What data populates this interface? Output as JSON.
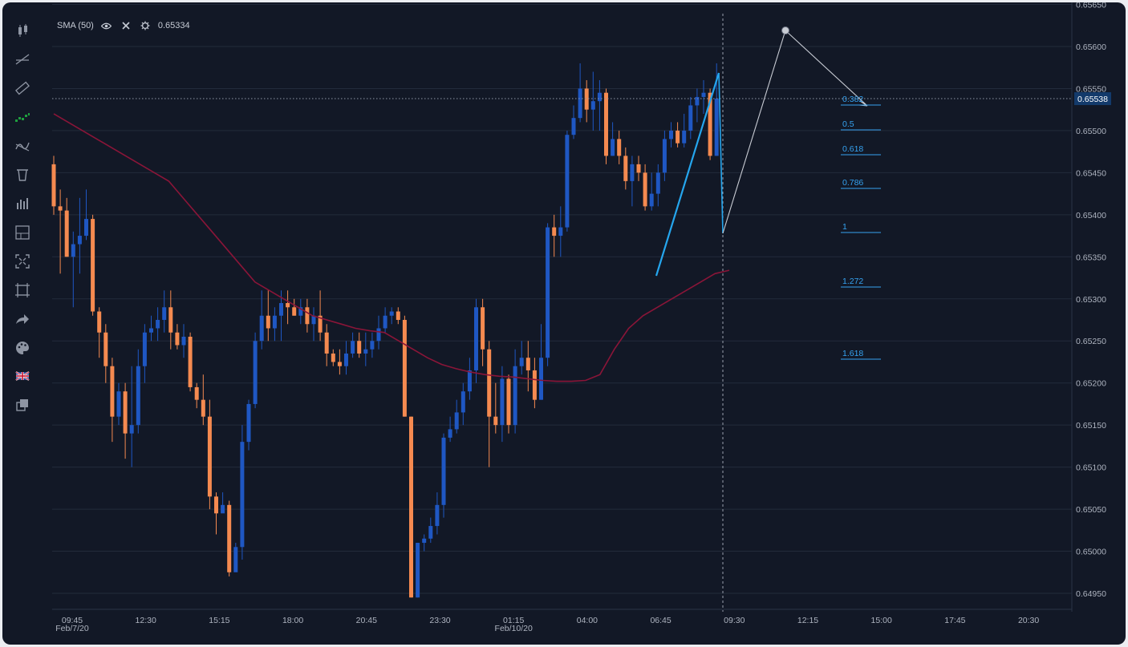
{
  "indicator": {
    "name": "SMA (50)",
    "value": "0.65334"
  },
  "toolbar": [
    "candles-icon",
    "trendline-icon",
    "ruler-icon",
    "bar-pattern-icon",
    "indicators-icon",
    "trash-icon",
    "volume-icon",
    "layout-icon",
    "fullscreen-icon",
    "crop-icon",
    "share-icon",
    "palette-icon",
    "uk-flag-icon",
    "layers-icon"
  ],
  "colors": {
    "background": "#121826",
    "up": "#1f57c3",
    "down": "#f58a50",
    "sma": "#8a1538",
    "fib": "#35a2f0",
    "pattern_projection": "#c8ccd4",
    "pattern_leg": "#25a6ee"
  },
  "chart_data": {
    "type": "candlestick",
    "symbol_pair_hint": "GBP",
    "price_axis": {
      "ticks": [
        "0.64950",
        "0.65000",
        "0.65050",
        "0.65100",
        "0.65150",
        "0.65200",
        "0.65250",
        "0.65300",
        "0.65350",
        "0.65400",
        "0.65450",
        "0.65500",
        "0.65550",
        "0.65600",
        "0.65650"
      ],
      "ylim": [
        0.64925,
        0.6566
      ]
    },
    "time_axis": [
      {
        "label": "09:45",
        "sub": "Feb/7/20"
      },
      {
        "label": "12:30"
      },
      {
        "label": "15:15"
      },
      {
        "label": "18:00"
      },
      {
        "label": "20:45"
      },
      {
        "label": "23:30"
      },
      {
        "label": "01:15",
        "sub": "Feb/10/20"
      },
      {
        "label": "04:00"
      },
      {
        "label": "06:45"
      },
      {
        "label": "09:30"
      },
      {
        "label": "12:15"
      },
      {
        "label": "15:00"
      },
      {
        "label": "17:45"
      },
      {
        "label": "20:30"
      }
    ],
    "current_price": "0.65538",
    "candles": [
      [
        0.6546,
        0.6541,
        0.6547,
        0.654
      ],
      [
        0.6541,
        0.65405,
        0.6543,
        0.6533
      ],
      [
        0.65405,
        0.6535,
        0.6542,
        0.6535
      ],
      [
        0.6535,
        0.65365,
        0.6538,
        0.6529
      ],
      [
        0.65365,
        0.65375,
        0.6542,
        0.6533
      ],
      [
        0.65375,
        0.65395,
        0.6543,
        0.6537
      ],
      [
        0.65395,
        0.65285,
        0.654,
        0.6528
      ],
      [
        0.65285,
        0.6526,
        0.6529,
        0.6523
      ],
      [
        0.6526,
        0.6522,
        0.6527,
        0.652
      ],
      [
        0.6522,
        0.6516,
        0.6523,
        0.6513
      ],
      [
        0.6516,
        0.6519,
        0.652,
        0.6515
      ],
      [
        0.6519,
        0.6514,
        0.652,
        0.6511
      ],
      [
        0.6514,
        0.6515,
        0.6522,
        0.651
      ],
      [
        0.6515,
        0.6522,
        0.6524,
        0.6514
      ],
      [
        0.6522,
        0.6526,
        0.6527,
        0.652
      ],
      [
        0.6526,
        0.65265,
        0.6528,
        0.6525
      ],
      [
        0.65265,
        0.65275,
        0.6529,
        0.6525
      ],
      [
        0.65275,
        0.6529,
        0.6531,
        0.6526
      ],
      [
        0.6529,
        0.6526,
        0.6531,
        0.6524
      ],
      [
        0.6526,
        0.65245,
        0.6527,
        0.6524
      ],
      [
        0.65245,
        0.65255,
        0.6527,
        0.6523
      ],
      [
        0.65255,
        0.65195,
        0.6526,
        0.6519
      ],
      [
        0.65195,
        0.6518,
        0.652,
        0.6517
      ],
      [
        0.6518,
        0.6516,
        0.6521,
        0.6515
      ],
      [
        0.6516,
        0.65065,
        0.6518,
        0.6505
      ],
      [
        0.65065,
        0.65045,
        0.6507,
        0.6502
      ],
      [
        0.65045,
        0.65055,
        0.6507,
        0.6505
      ],
      [
        0.65055,
        0.64975,
        0.6506,
        0.6497
      ],
      [
        0.64975,
        0.65005,
        0.6501,
        0.6499
      ],
      [
        0.65005,
        0.6513,
        0.6515,
        0.6499
      ],
      [
        0.6513,
        0.65175,
        0.6518,
        0.6512
      ],
      [
        0.65175,
        0.6525,
        0.6526,
        0.6517
      ],
      [
        0.6525,
        0.6528,
        0.6531,
        0.6524
      ],
      [
        0.6528,
        0.65265,
        0.6531,
        0.6525
      ],
      [
        0.65265,
        0.6528,
        0.6529,
        0.6525
      ],
      [
        0.6528,
        0.65295,
        0.6531,
        0.6525
      ],
      [
        0.65295,
        0.6529,
        0.6531,
        0.6527
      ],
      [
        0.6529,
        0.6528,
        0.653,
        0.6528
      ],
      [
        0.6528,
        0.6529,
        0.653,
        0.6527
      ],
      [
        0.6529,
        0.6527,
        0.653,
        0.6526
      ],
      [
        0.6527,
        0.6528,
        0.6529,
        0.6525
      ],
      [
        0.6528,
        0.6526,
        0.6531,
        0.6525
      ],
      [
        0.6526,
        0.65235,
        0.6527,
        0.6522
      ],
      [
        0.65235,
        0.65225,
        0.6524,
        0.6522
      ],
      [
        0.65225,
        0.6522,
        0.6524,
        0.6521
      ],
      [
        0.6522,
        0.65235,
        0.6525,
        0.6521
      ],
      [
        0.65235,
        0.6525,
        0.6526,
        0.6523
      ],
      [
        0.6525,
        0.65235,
        0.6526,
        0.6523
      ],
      [
        0.65235,
        0.6524,
        0.6526,
        0.6522
      ],
      [
        0.6524,
        0.6525,
        0.6526,
        0.6523
      ],
      [
        0.6525,
        0.65265,
        0.6528,
        0.6524
      ],
      [
        0.65265,
        0.6528,
        0.6529,
        0.6526
      ],
      [
        0.6528,
        0.65285,
        0.6529,
        0.6527
      ],
      [
        0.65285,
        0.65275,
        0.6529,
        0.6527
      ],
      [
        0.65275,
        0.6516,
        0.6528,
        0.6516
      ],
      [
        0.6516,
        0.64945,
        0.6516,
        0.64945
      ],
      [
        0.64945,
        0.6501,
        0.6501,
        0.64945
      ],
      [
        0.6501,
        0.65015,
        0.6502,
        0.65
      ],
      [
        0.65015,
        0.6503,
        0.6504,
        0.6501
      ],
      [
        0.6503,
        0.65055,
        0.6507,
        0.6502
      ],
      [
        0.65055,
        0.65135,
        0.6514,
        0.6504
      ],
      [
        0.65135,
        0.65145,
        0.6516,
        0.6513
      ],
      [
        0.65145,
        0.65165,
        0.6518,
        0.6514
      ],
      [
        0.65165,
        0.6519,
        0.652,
        0.6515
      ],
      [
        0.6519,
        0.65215,
        0.6523,
        0.6518
      ],
      [
        0.65215,
        0.6529,
        0.653,
        0.652
      ],
      [
        0.6529,
        0.6524,
        0.653,
        0.6522
      ],
      [
        0.6524,
        0.6516,
        0.6525,
        0.651
      ],
      [
        0.6516,
        0.6515,
        0.652,
        0.6514
      ],
      [
        0.6515,
        0.65205,
        0.6522,
        0.6513
      ],
      [
        0.65205,
        0.6515,
        0.6521,
        0.6514
      ],
      [
        0.6515,
        0.6522,
        0.6524,
        0.6514
      ],
      [
        0.6522,
        0.6523,
        0.6525,
        0.6521
      ],
      [
        0.6523,
        0.65215,
        0.6525,
        0.6519
      ],
      [
        0.65215,
        0.6518,
        0.6523,
        0.6517
      ],
      [
        0.6518,
        0.6523,
        0.6527,
        0.6518
      ],
      [
        0.6523,
        0.65385,
        0.6539,
        0.6522
      ],
      [
        0.65385,
        0.65375,
        0.654,
        0.6535
      ],
      [
        0.65375,
        0.65385,
        0.6541,
        0.6535
      ],
      [
        0.65385,
        0.65495,
        0.655,
        0.6538
      ],
      [
        0.65495,
        0.65515,
        0.6553,
        0.6549
      ],
      [
        0.65515,
        0.6555,
        0.6558,
        0.6551
      ],
      [
        0.6555,
        0.65525,
        0.6556,
        0.6551
      ],
      [
        0.65525,
        0.65535,
        0.6557,
        0.655
      ],
      [
        0.65535,
        0.65545,
        0.6556,
        0.655
      ],
      [
        0.65545,
        0.6547,
        0.6555,
        0.6546
      ],
      [
        0.6547,
        0.6549,
        0.6551,
        0.6547
      ],
      [
        0.6549,
        0.6547,
        0.655,
        0.6546
      ],
      [
        0.6547,
        0.6544,
        0.6548,
        0.6543
      ],
      [
        0.6544,
        0.6546,
        0.6547,
        0.6541
      ],
      [
        0.6546,
        0.6545,
        0.6547,
        0.6544
      ],
      [
        0.6545,
        0.6541,
        0.6546,
        0.65405
      ],
      [
        0.6541,
        0.65425,
        0.6545,
        0.65405
      ],
      [
        0.65425,
        0.6545,
        0.6546,
        0.6541
      ],
      [
        0.6545,
        0.6549,
        0.655,
        0.6544
      ],
      [
        0.6549,
        0.655,
        0.6551,
        0.6548
      ],
      [
        0.655,
        0.65485,
        0.6551,
        0.6548
      ],
      [
        0.65485,
        0.655,
        0.6552,
        0.6548
      ],
      [
        0.655,
        0.6553,
        0.6554,
        0.6549
      ],
      [
        0.6553,
        0.6554,
        0.6555,
        0.6551
      ],
      [
        0.6554,
        0.65545,
        0.6556,
        0.6552
      ],
      [
        0.65545,
        0.6547,
        0.6555,
        0.65465
      ],
      [
        0.6547,
        0.65538,
        0.6558,
        0.6547
      ]
    ],
    "sma": [
      0.6552,
      0.6551,
      0.655,
      0.6549,
      0.6548,
      0.6547,
      0.6546,
      0.6545,
      0.6544,
      0.6542,
      0.654,
      0.6538,
      0.6536,
      0.6534,
      0.6532,
      0.6531,
      0.653,
      0.6529,
      0.6528,
      0.65275,
      0.6527,
      0.65265,
      0.65262,
      0.6526,
      0.6525,
      0.6524,
      0.6523,
      0.65222,
      0.65217,
      0.65213,
      0.6521,
      0.65208,
      0.65207,
      0.65205,
      0.65203,
      0.65202,
      0.65202,
      0.65203,
      0.6521,
      0.6524,
      0.65265,
      0.6528,
      0.6529,
      0.653,
      0.6531,
      0.6532,
      0.6533,
      0.65334
    ],
    "fibonacci": [
      {
        "level": "0.382"
      },
      {
        "level": "0.5"
      },
      {
        "level": "0.618"
      },
      {
        "level": "0.786"
      },
      {
        "level": "1"
      },
      {
        "level": "1.272"
      },
      {
        "level": "1.618"
      }
    ]
  }
}
